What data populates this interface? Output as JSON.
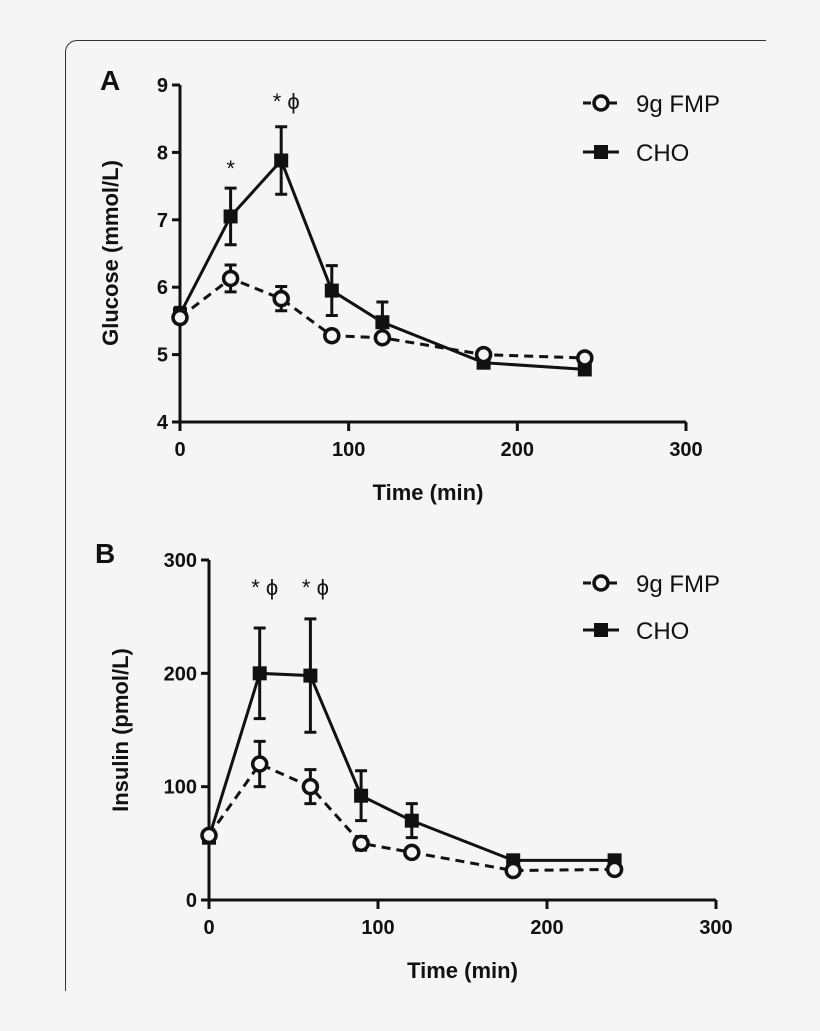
{
  "chart_data": [
    {
      "type": "line",
      "panel_label": "A",
      "xlabel": "Time (min)",
      "ylabel": "Glucose  (mmol/L)",
      "xlim": [
        0,
        300
      ],
      "ylim": [
        4,
        9
      ],
      "xticks": [
        "0",
        "100",
        "200",
        "300"
      ],
      "yticks": [
        "4",
        "5",
        "6",
        "7",
        "8",
        "9"
      ],
      "x": [
        0,
        30,
        60,
        90,
        120,
        180,
        240
      ],
      "legend_position": "top-right",
      "series": [
        {
          "name": "9g FMP",
          "marker": "open-circle",
          "line": "dashed",
          "values": [
            5.55,
            6.13,
            5.83,
            5.28,
            5.25,
            5.0,
            4.95
          ],
          "errors": [
            0.08,
            0.2,
            0.18,
            0.08,
            0.06,
            0.05,
            0.05
          ]
        },
        {
          "name": "CHO",
          "marker": "filled-square",
          "line": "solid",
          "values": [
            5.6,
            7.05,
            7.88,
            5.95,
            5.48,
            4.88,
            4.78
          ],
          "errors": [
            0.1,
            0.42,
            0.5,
            0.37,
            0.3,
            0.05,
            0.05
          ]
        }
      ],
      "annotations": [
        {
          "x": 30,
          "text": "*"
        },
        {
          "x": 60,
          "text": "* ϕ"
        }
      ]
    },
    {
      "type": "line",
      "panel_label": "B",
      "xlabel": "Time (min)",
      "ylabel": "Insulin (pmol/L)",
      "xlim": [
        0,
        300
      ],
      "ylim": [
        0,
        300
      ],
      "xticks": [
        "0",
        "100",
        "200",
        "300"
      ],
      "yticks": [
        "0",
        "100",
        "200",
        "300"
      ],
      "x": [
        0,
        30,
        60,
        90,
        120,
        180,
        240
      ],
      "legend_position": "top-right",
      "series": [
        {
          "name": "9g FMP",
          "marker": "open-circle",
          "line": "dashed",
          "values": [
            57,
            120,
            100,
            50,
            42,
            26,
            27
          ],
          "errors": [
            4,
            20,
            15,
            6,
            3,
            2,
            2
          ]
        },
        {
          "name": "CHO",
          "marker": "filled-square",
          "line": "solid",
          "values": [
            55,
            200,
            198,
            92,
            70,
            35,
            35
          ],
          "errors": [
            4,
            40,
            50,
            22,
            15,
            3,
            2
          ]
        }
      ],
      "annotations": [
        {
          "x": 30,
          "text": "* ϕ"
        },
        {
          "x": 60,
          "text": "* ϕ"
        }
      ]
    }
  ]
}
